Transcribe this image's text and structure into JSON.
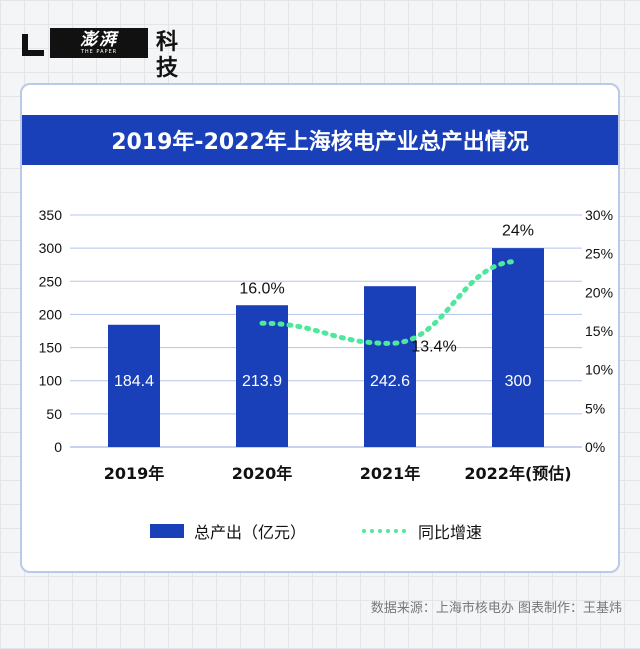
{
  "brand": {
    "name_cn": "澎湃",
    "name_en": "THE PAPER",
    "section": "科技"
  },
  "colors": {
    "bar": "#1940b8",
    "line": "#4de89b",
    "grid": "#b3c5ec",
    "title_bg": "#1940b8"
  },
  "chart_data": {
    "type": "bar+line",
    "title": "2019年-2022年上海核电产业总产出情况",
    "categories": [
      "2019年",
      "2020年",
      "2021年",
      "2022年(预估)"
    ],
    "series": [
      {
        "name": "总产出（亿元）",
        "type": "bar",
        "axis": "left",
        "values": [
          184.4,
          213.9,
          242.6,
          300
        ],
        "labels": [
          "184.4",
          "213.9",
          "242.6",
          "300"
        ]
      },
      {
        "name": "同比增速",
        "type": "line",
        "axis": "right",
        "values": [
          null,
          16.0,
          13.4,
          24
        ],
        "labels": [
          null,
          "16.0%",
          "13.4%",
          "24%"
        ]
      }
    ],
    "y_left": {
      "min": 0,
      "max": 350,
      "ticks": [
        0,
        50,
        100,
        150,
        200,
        250,
        300,
        350
      ]
    },
    "y_right": {
      "min": 0,
      "max": 30,
      "ticks": [
        "0%",
        "5%",
        "10%",
        "15%",
        "20%",
        "25%",
        "30%"
      ]
    },
    "legend": {
      "bar_label": "总产出（亿元）",
      "line_label": "同比增速"
    }
  },
  "source": "数据来源：上海市核电办    图表制作：王基炜"
}
